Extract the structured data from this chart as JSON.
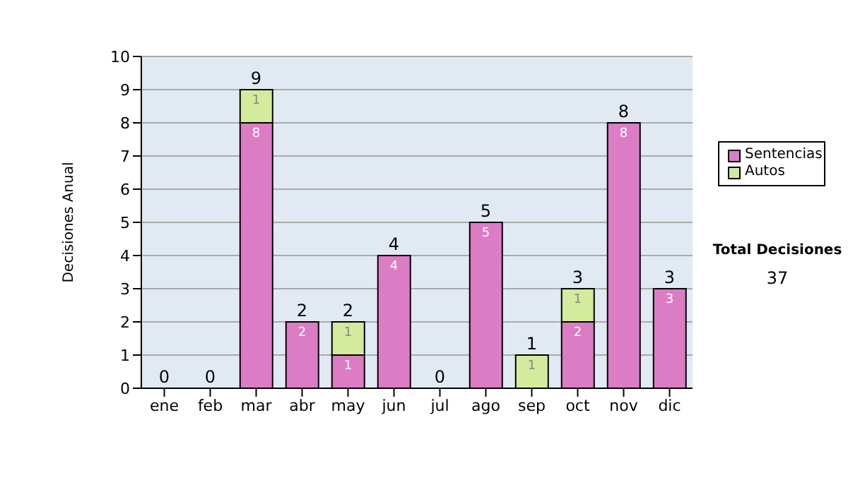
{
  "chart_data": {
    "type": "bar",
    "ylabel": "Decisiones Anual",
    "categories": [
      "ene",
      "feb",
      "mar",
      "abr",
      "may",
      "jun",
      "jul",
      "ago",
      "sep",
      "oct",
      "nov",
      "dic"
    ],
    "series": [
      {
        "name": "Sentencias",
        "color": "#dc7cc4",
        "values": [
          0,
          0,
          8,
          2,
          1,
          4,
          0,
          5,
          0,
          2,
          8,
          3
        ],
        "value_labels": [
          null,
          null,
          "8",
          "2",
          "1",
          "4",
          null,
          "5",
          null,
          "2",
          "8",
          "3"
        ]
      },
      {
        "name": "Autos",
        "color": "#d4ea9c",
        "values": [
          0,
          0,
          1,
          0,
          1,
          0,
          0,
          0,
          1,
          1,
          0,
          0
        ],
        "value_labels": [
          null,
          null,
          "1",
          null,
          "1",
          null,
          null,
          null,
          "1",
          "1",
          null,
          null
        ]
      }
    ],
    "stacked": true,
    "totals": [
      "0",
      "0",
      "9",
      "2",
      "2",
      "4",
      "0",
      "5",
      "1",
      "3",
      "8",
      "3"
    ],
    "ylim": [
      0,
      10
    ],
    "yticks": [
      0,
      1,
      2,
      3,
      4,
      5,
      6,
      7,
      8,
      9,
      10
    ],
    "grid": "y",
    "legend": "right",
    "annotations": [
      "Total Decisiones",
      "37"
    ]
  }
}
